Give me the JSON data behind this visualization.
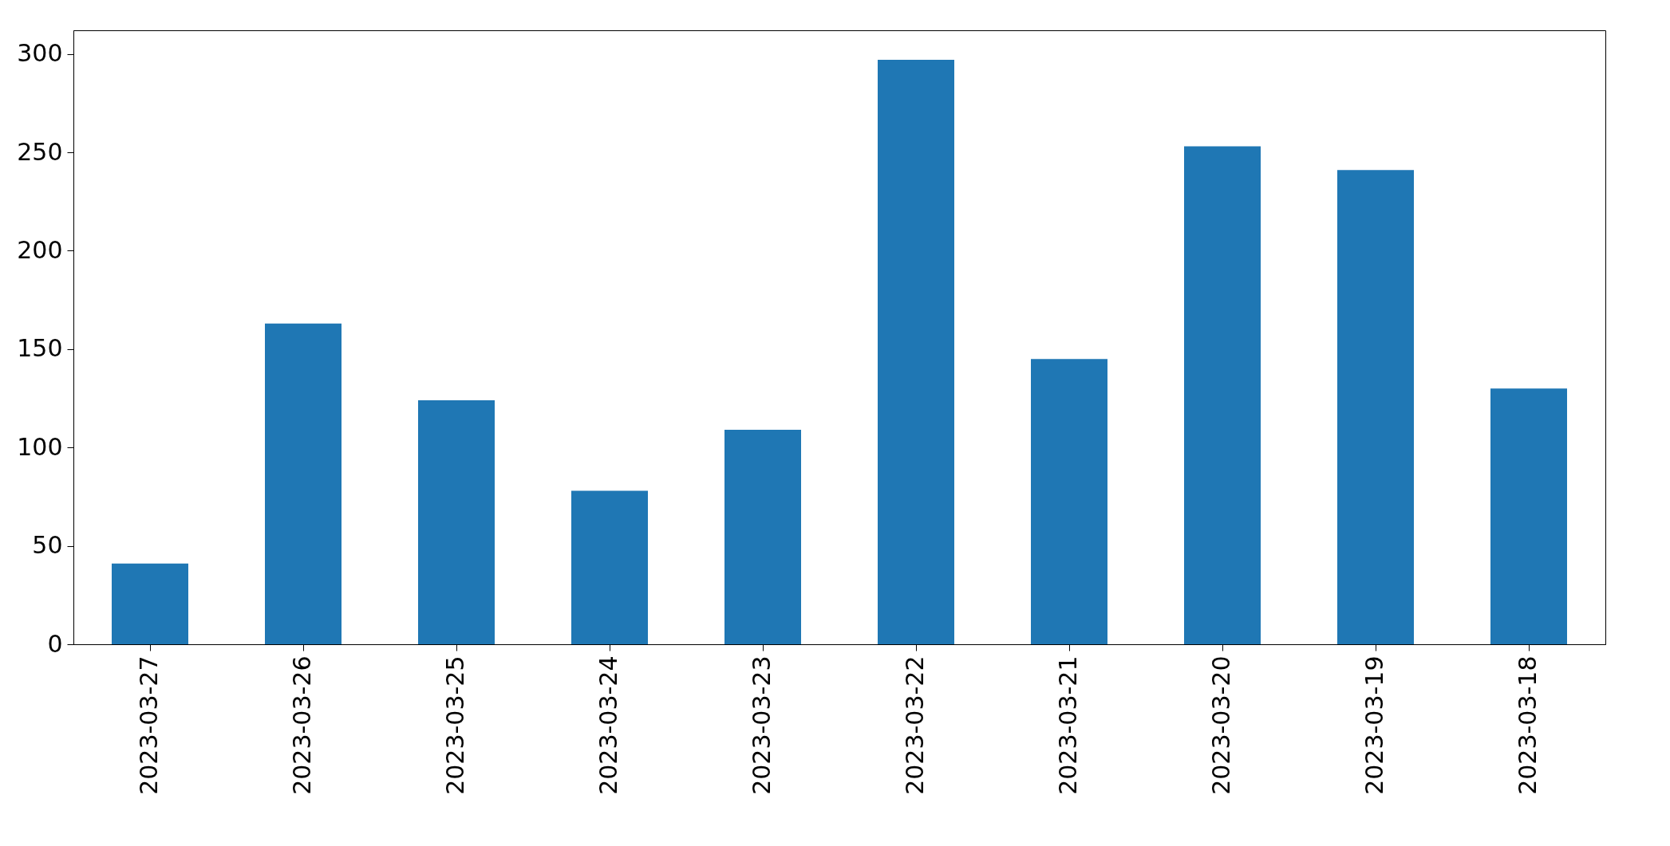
{
  "chart_data": {
    "type": "bar",
    "categories": [
      "2023-03-27",
      "2023-03-26",
      "2023-03-25",
      "2023-03-24",
      "2023-03-23",
      "2023-03-22",
      "2023-03-21",
      "2023-03-20",
      "2023-03-19",
      "2023-03-18"
    ],
    "values": [
      41,
      163,
      124,
      78,
      109,
      297,
      145,
      253,
      241,
      130
    ],
    "color": "#1f77b4",
    "ylim": [
      0,
      312
    ],
    "yticks": [
      0,
      50,
      100,
      150,
      200,
      250,
      300
    ],
    "grid": false
  }
}
